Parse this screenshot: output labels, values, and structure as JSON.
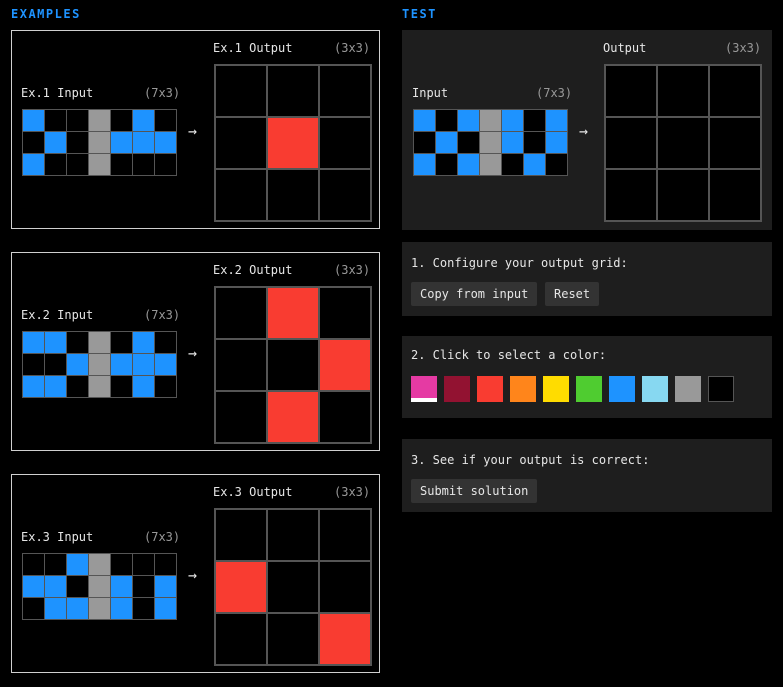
{
  "colors": {
    "0": "#000000",
    "1": "#1e93ff",
    "2": "#f93c31",
    "5": "#999999",
    "accent": "#1e93ff"
  },
  "headers": {
    "examples": "EXAMPLES",
    "test": "TEST"
  },
  "examples": [
    {
      "input_label": "Ex.1 Input",
      "input_size": "(7x3)",
      "output_label": "Ex.1 Output",
      "output_size": "(3x3)",
      "input": [
        [
          1,
          0,
          0,
          5,
          0,
          1,
          0
        ],
        [
          0,
          1,
          0,
          5,
          1,
          1,
          1
        ],
        [
          1,
          0,
          0,
          5,
          0,
          0,
          0
        ]
      ],
      "output": [
        [
          0,
          0,
          0
        ],
        [
          0,
          2,
          0
        ],
        [
          0,
          0,
          0
        ]
      ]
    },
    {
      "input_label": "Ex.2 Input",
      "input_size": "(7x3)",
      "output_label": "Ex.2 Output",
      "output_size": "(3x3)",
      "input": [
        [
          1,
          1,
          0,
          5,
          0,
          1,
          0
        ],
        [
          0,
          0,
          1,
          5,
          1,
          1,
          1
        ],
        [
          1,
          1,
          0,
          5,
          0,
          1,
          0
        ]
      ],
      "output": [
        [
          0,
          2,
          0
        ],
        [
          0,
          0,
          2
        ],
        [
          0,
          2,
          0
        ]
      ]
    },
    {
      "input_label": "Ex.3 Input",
      "input_size": "(7x3)",
      "output_label": "Ex.3 Output",
      "output_size": "(3x3)",
      "input": [
        [
          0,
          0,
          1,
          5,
          0,
          0,
          0
        ],
        [
          1,
          1,
          0,
          5,
          1,
          0,
          1
        ],
        [
          0,
          1,
          1,
          5,
          1,
          0,
          1
        ]
      ],
      "output": [
        [
          0,
          0,
          0
        ],
        [
          2,
          0,
          0
        ],
        [
          0,
          0,
          2
        ]
      ]
    }
  ],
  "test": {
    "input_label": "Input",
    "input_size": "(7x3)",
    "output_label": "Output",
    "output_size": "(3x3)",
    "input": [
      [
        1,
        0,
        1,
        5,
        1,
        0,
        1
      ],
      [
        0,
        1,
        0,
        5,
        1,
        0,
        1
      ],
      [
        1,
        0,
        1,
        5,
        0,
        1,
        0
      ]
    ],
    "output": [
      [
        0,
        0,
        0
      ],
      [
        0,
        0,
        0
      ],
      [
        0,
        0,
        0
      ]
    ]
  },
  "controls": {
    "step1": "1. Configure your output grid:",
    "copy_button": "Copy from input",
    "reset_button": "Reset",
    "step2": "2. Click to select a color:",
    "palette": [
      "#e53aa3",
      "#921231",
      "#f93c31",
      "#ff851b",
      "#ffdc00",
      "#4fcc30",
      "#1e93ff",
      "#87d8f1",
      "#999999",
      "#000000"
    ],
    "selected_color_index": 0,
    "step3": "3. See if your output is correct:",
    "submit_button": "Submit solution"
  }
}
